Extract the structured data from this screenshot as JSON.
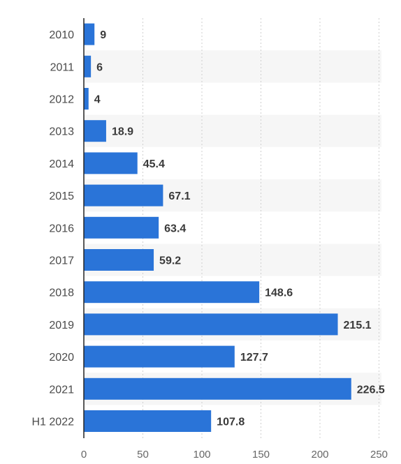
{
  "chart_data": {
    "type": "bar",
    "orientation": "horizontal",
    "title": "",
    "xlabel": "",
    "ylabel": "",
    "categories": [
      "2010",
      "2011",
      "2012",
      "2013",
      "2014",
      "2015",
      "2016",
      "2017",
      "2018",
      "2019",
      "2020",
      "2021",
      "H1 2022"
    ],
    "values": [
      9,
      6,
      4,
      18.9,
      45.4,
      67.1,
      63.4,
      59.2,
      148.6,
      215.1,
      127.7,
      226.5,
      107.8
    ],
    "value_labels": [
      "9",
      "6",
      "4",
      "18.9",
      "45.4",
      "67.1",
      "63.4",
      "59.2",
      "148.6",
      "215.1",
      "127.7",
      "226.5",
      "107.8"
    ],
    "xlim": [
      0,
      250
    ],
    "xticks": [
      0,
      50,
      100,
      150,
      200,
      250
    ],
    "xtick_labels": [
      "0",
      "50",
      "100",
      "150",
      "200",
      "250"
    ],
    "grid": true,
    "legend": "none",
    "colors": {
      "bar": "#2a74d8",
      "band": "#f6f6f6",
      "grid": "#cfcfcf",
      "axis": "#222222"
    }
  }
}
